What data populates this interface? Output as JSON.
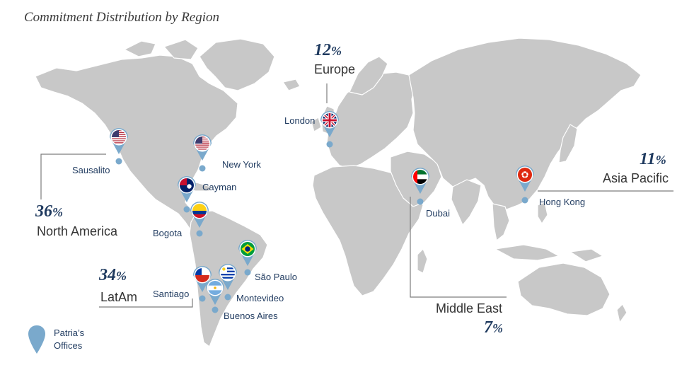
{
  "title": "Commitment Distribution by Region",
  "regions": {
    "north_america": {
      "pct_num": "36",
      "pct_sym": "%",
      "name": "North America"
    },
    "latam": {
      "pct_num": "34",
      "pct_sym": "%",
      "name": "LatAm"
    },
    "europe": {
      "pct_num": "12",
      "pct_sym": "%",
      "name": "Europe"
    },
    "asia_pacific": {
      "pct_num": "11",
      "pct_sym": "%",
      "name": "Asia Pacific"
    },
    "middle_east": {
      "pct_num": "7",
      "pct_sym": "%",
      "name": "Middle East"
    }
  },
  "offices": [
    {
      "name": "Sausalito",
      "flag": "usa"
    },
    {
      "name": "New York",
      "flag": "usa"
    },
    {
      "name": "Cayman",
      "flag": "cayman"
    },
    {
      "name": "Bogota",
      "flag": "colombia"
    },
    {
      "name": "São Paulo",
      "flag": "brazil"
    },
    {
      "name": "Santiago",
      "flag": "chile"
    },
    {
      "name": "Montevideo",
      "flag": "uruguay"
    },
    {
      "name": "Buenos Aires",
      "flag": "argentina"
    },
    {
      "name": "London",
      "flag": "uk"
    },
    {
      "name": "Dubai",
      "flag": "uae"
    },
    {
      "name": "Hong Kong",
      "flag": "hong-kong"
    }
  ],
  "legend": {
    "line1": "Patria’s",
    "line2": "Offices",
    "icon": "map-pin-icon"
  },
  "colors": {
    "land": "#c8c8c8",
    "coast": "#ffffff",
    "pin": "#7aa9cc",
    "dot": "#7aa9cc",
    "accent": "#1f3a5f",
    "leader": "#7d7d7d"
  }
}
